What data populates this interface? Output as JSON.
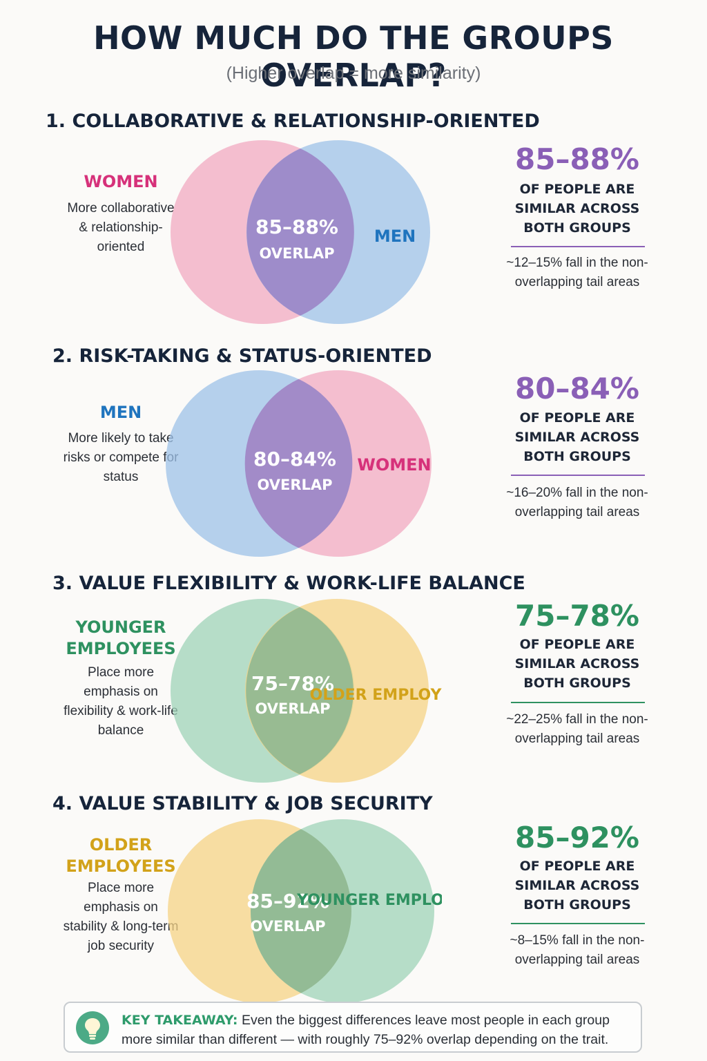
{
  "title": "HOW MUCH DO THE GROUPS OVERLAP?",
  "subtitle": "(Higher overlap = more similarity)",
  "colors": {
    "pink": "#f2a9c1",
    "blue": "#9dc2e8",
    "green": "#9fd3b8",
    "yellow": "#f5d386",
    "overlap_purple": "#9b86c8",
    "overlap_green": "#8fb891",
    "women_text": "#d6317a",
    "men_text": "#1f74be",
    "younger_text": "#2e9160",
    "older_text": "#d2a21a",
    "purple_text": "#8a5fb6",
    "green_text": "#2e9160"
  },
  "sections": [
    {
      "heading": "1. COLLABORATIVE & RELATIONSHIP-ORIENTED",
      "left_group": "WOMEN",
      "left_desc": "More collaborative & relationship-oriented",
      "right_group": "MEN",
      "overlap_pct": "85–88%",
      "overlap_word": "OVERLAP",
      "stat_pct": "85–88%",
      "stat_desc": "OF PEOPLE ARE SIMILAR ACROSS BOTH GROUPS",
      "stat_tail": "~12–15% fall in the non-overlapping tail areas"
    },
    {
      "heading": "2. RISK-TAKING & STATUS-ORIENTED",
      "left_group": "MEN",
      "left_desc": "More likely to take risks or compete for status",
      "right_group": "WOMEN",
      "overlap_pct": "80–84%",
      "overlap_word": "OVERLAP",
      "stat_pct": "80–84%",
      "stat_desc": "OF PEOPLE ARE SIMILAR ACROSS BOTH GROUPS",
      "stat_tail": "~16–20% fall in the non-overlapping tail areas"
    },
    {
      "heading": "3. VALUE FLEXIBILITY & WORK-LIFE BALANCE",
      "left_group": "YOUNGER EMPLOYEES",
      "left_desc": "Place more emphasis on flexibility & work-life balance",
      "right_group": "OLDER EMPLOYEES",
      "overlap_pct": "75–78%",
      "overlap_word": "OVERLAP",
      "stat_pct": "75–78%",
      "stat_desc": "OF PEOPLE ARE SIMILAR ACROSS BOTH GROUPS",
      "stat_tail": "~22–25% fall in the non-overlapping tail areas"
    },
    {
      "heading": "4. VALUE STABILITY & JOB SECURITY",
      "left_group": "OLDER EMPLOYEES",
      "left_desc": "Place more emphasis on stability & long-term job security",
      "right_group": "YOUNGER EMPLOYEES",
      "overlap_pct": "85–92%",
      "overlap_word": "OVERLAP",
      "stat_pct": "85–92%",
      "stat_desc": "OF PEOPLE ARE SIMILAR ACROSS BOTH GROUPS",
      "stat_tail": "~8–15% fall in the non-overlapping tail areas"
    }
  ],
  "takeaway": {
    "icon": "lightbulb-icon",
    "label": "KEY TAKEAWAY:",
    "text": "Even the biggest differences leave most people in each group more similar than different — with roughly 75–92% overlap depending on the trait."
  }
}
